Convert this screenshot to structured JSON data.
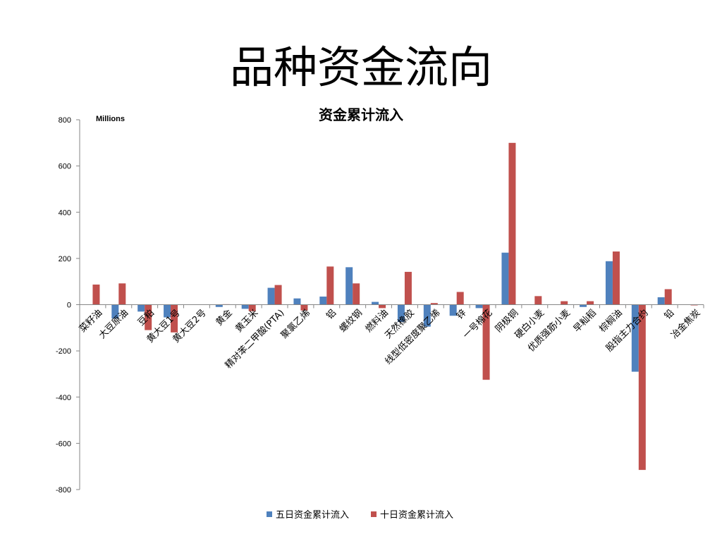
{
  "slide": {
    "title": "品种资金流向"
  },
  "chart_data": {
    "type": "bar",
    "title": "资金累计流入",
    "units_label": "Millions",
    "ylim": [
      -800,
      800
    ],
    "yticks": [
      800,
      600,
      400,
      200,
      0,
      -200,
      -400,
      -600,
      -800
    ],
    "categories": [
      "菜籽油",
      "大豆原油",
      "豆粕",
      "黄大豆1号",
      "黄大豆2号",
      "黄金",
      "黄玉米",
      "精对苯二甲酸(PTA)",
      "聚氯乙烯",
      "铝",
      "螺纹钢",
      "燃料油",
      "天然橡胶",
      "线型低密度聚乙烯",
      "锌",
      "一号棉花",
      "阴极铜",
      "硬白小麦",
      "优质强筋小麦",
      "早籼稻",
      "棕榈油",
      "股指主力合约",
      "铅",
      "冶金焦炭"
    ],
    "series": [
      {
        "name": "五日资金累计流入",
        "color": "#4F81BD",
        "values": [
          0,
          -60,
          -30,
          -55,
          0,
          -10,
          -18,
          73,
          27,
          35,
          162,
          12,
          -75,
          -95,
          -48,
          -15,
          225,
          0,
          0,
          -10,
          188,
          -290,
          32,
          0
        ]
      },
      {
        "name": "十日资金累计流入",
        "color": "#C0504D",
        "values": [
          87,
          92,
          -110,
          -120,
          0,
          2,
          -28,
          85,
          -25,
          165,
          92,
          -15,
          142,
          7,
          55,
          -325,
          700,
          37,
          15,
          15,
          230,
          -715,
          67,
          -3
        ]
      }
    ],
    "grid": false,
    "legend_position": "bottom"
  }
}
